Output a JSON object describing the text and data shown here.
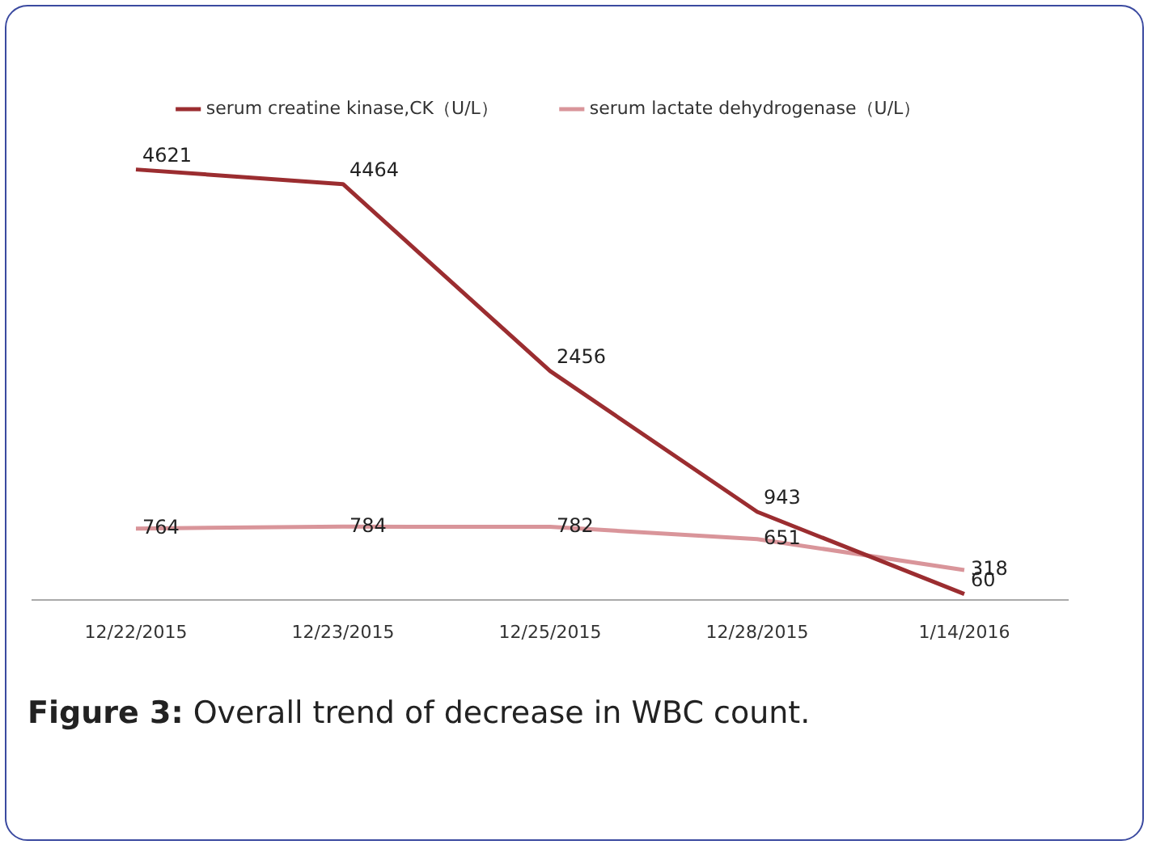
{
  "chart_data": {
    "type": "line",
    "categories": [
      "12/22/2015",
      "12/23/2015",
      "12/25/2015",
      "12/28/2015",
      "1/14/2016"
    ],
    "series": [
      {
        "name": "serum creatine kinase,CK（U/L）",
        "color": "#9b2d30",
        "values": [
          4621,
          4464,
          2456,
          943,
          60
        ]
      },
      {
        "name": "serum lactate dehydrogenase（U/L）",
        "color": "#d9959a",
        "values": [
          764,
          784,
          782,
          651,
          318
        ]
      }
    ],
    "data_labels": true,
    "legend": "top",
    "grid": false,
    "marker": "none",
    "annotations": [
      "Figure 3: Overall trend of decrease in WBC count."
    ]
  }
}
